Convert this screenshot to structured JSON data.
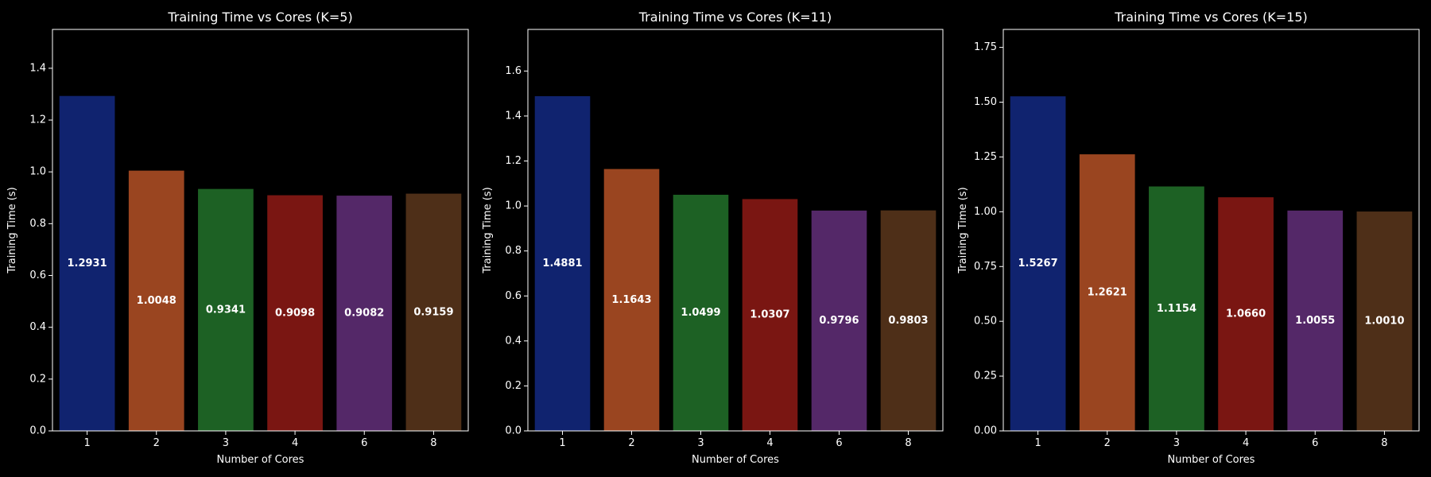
{
  "chart_data": [
    {
      "type": "bar",
      "title": "Training Time vs Cores (K=5)",
      "xlabel": "Number of Cores",
      "ylabel": "Training Time (s)",
      "categories": [
        "1",
        "2",
        "3",
        "4",
        "6",
        "8"
      ],
      "values": [
        1.2931,
        1.0048,
        0.9341,
        0.9098,
        0.9082,
        0.9159
      ],
      "value_labels": [
        "1.2931",
        "1.0048",
        "0.9341",
        "0.9098",
        "0.9082",
        "0.9159"
      ],
      "ylim": [
        0,
        1.55
      ],
      "yticks": [
        0.0,
        0.2,
        0.4,
        0.6,
        0.8,
        1.0,
        1.2,
        1.4
      ],
      "ytick_labels": [
        "0.0",
        "0.2",
        "0.4",
        "0.6",
        "0.8",
        "1.0",
        "1.2",
        "1.4"
      ],
      "grid": false
    },
    {
      "type": "bar",
      "title": "Training Time vs Cores (K=11)",
      "xlabel": "Number of Cores",
      "ylabel": "Training Time (s)",
      "categories": [
        "1",
        "2",
        "3",
        "4",
        "6",
        "8"
      ],
      "values": [
        1.4881,
        1.1643,
        1.0499,
        1.0307,
        0.9796,
        0.9803
      ],
      "value_labels": [
        "1.4881",
        "1.1643",
        "1.0499",
        "1.0307",
        "0.9796",
        "0.9803"
      ],
      "ylim": [
        0,
        1.785
      ],
      "yticks": [
        0.0,
        0.2,
        0.4,
        0.6,
        0.8,
        1.0,
        1.2,
        1.4,
        1.6
      ],
      "ytick_labels": [
        "0.0",
        "0.2",
        "0.4",
        "0.6",
        "0.8",
        "1.0",
        "1.2",
        "1.4",
        "1.6"
      ],
      "grid": false
    },
    {
      "type": "bar",
      "title": "Training Time vs Cores (K=15)",
      "xlabel": "Number of Cores",
      "ylabel": "Training Time (s)",
      "categories": [
        "1",
        "2",
        "3",
        "4",
        "6",
        "8"
      ],
      "values": [
        1.5267,
        1.2621,
        1.1154,
        1.066,
        1.0055,
        1.001
      ],
      "value_labels": [
        "1.5267",
        "1.2621",
        "1.1154",
        "1.0660",
        "1.0055",
        "1.0010"
      ],
      "ylim": [
        0,
        1.832
      ],
      "yticks": [
        0.0,
        0.25,
        0.5,
        0.75,
        1.0,
        1.25,
        1.5,
        1.75
      ],
      "ytick_labels": [
        "0.00",
        "0.25",
        "0.50",
        "0.75",
        "1.00",
        "1.25",
        "1.50",
        "1.75"
      ],
      "grid": false
    }
  ],
  "colors": {
    "background": "#000000",
    "axes": "#ffffff",
    "text": "#ffffff",
    "bars": [
      "#10236f",
      "#9a4520",
      "#1d6124",
      "#7a1612",
      "#542868",
      "#4e2f18"
    ]
  }
}
